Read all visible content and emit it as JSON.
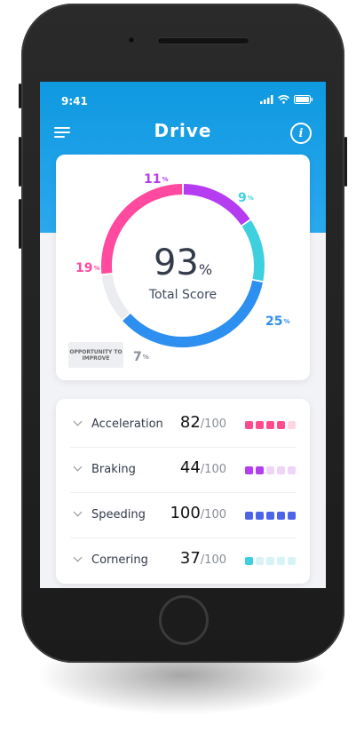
{
  "status_bar": {
    "time": "9:41"
  },
  "header": {
    "title": "Drive",
    "menu_icon": "hamburger-icon",
    "info_icon": "info-icon",
    "info_glyph": "i"
  },
  "score": {
    "value": "93",
    "unit": "%",
    "caption": "Total Score",
    "badge": "OPPORTUNITY TO IMPROVE",
    "segments": [
      {
        "label": "11",
        "percent": 11,
        "color": "#b53cf0"
      },
      {
        "label": "9",
        "percent": 9,
        "color": "#3fd0e0"
      },
      {
        "label": "25",
        "percent": 25,
        "color": "#2d8ff0"
      },
      {
        "label": "7",
        "percent": 7,
        "color": "#eaecef"
      },
      {
        "label": "19",
        "percent": 19,
        "color": "#ff4aa0"
      }
    ],
    "label_colors": {
      "11": "#b53cf0",
      "9": "#3fd0e0",
      "25": "#2d8ff0",
      "7": "#8a8f99",
      "19": "#ff4aa0"
    },
    "pct_symbol": "%"
  },
  "metrics": [
    {
      "label": "Acceleration",
      "score": "82",
      "denominator": "/100",
      "filled": 4,
      "color": "#ff4a8d",
      "light": "#ffd5e5"
    },
    {
      "label": "Braking",
      "score": "44",
      "denominator": "/100",
      "filled": 2,
      "color": "#b53cf0",
      "light": "#eed5f8"
    },
    {
      "label": "Speeding",
      "score": "100",
      "denominator": "/100",
      "filled": 5,
      "color": "#4d63e8",
      "light": "#d5dbfa"
    },
    {
      "label": "Cornering",
      "score": "37",
      "denominator": "/100",
      "filled": 1,
      "color": "#3fd0e0",
      "light": "#d6f3f7"
    }
  ]
}
